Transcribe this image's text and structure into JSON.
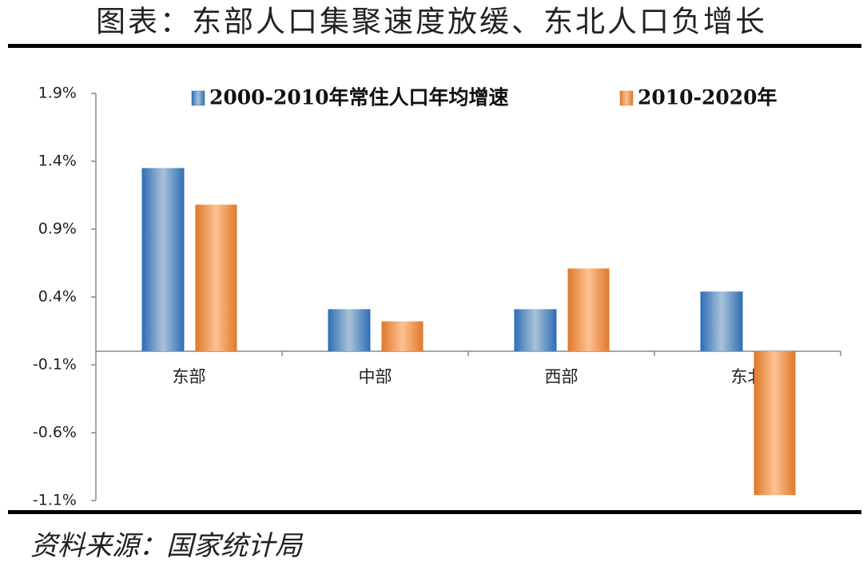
{
  "chart_data": {
    "type": "bar",
    "title": "图表：东部人口集聚速度放缓、东北人口负增长",
    "source": "资料来源：国家统计局",
    "categories": [
      "东部",
      "中部",
      "西部",
      "东北"
    ],
    "series": [
      {
        "name": "2000-2010年常住人口年均增速",
        "color": "#2e6db4",
        "values": [
          1.35,
          0.31,
          0.31,
          0.44
        ]
      },
      {
        "name": "2010-2020年",
        "color": "#e0782a",
        "values": [
          1.08,
          0.22,
          0.61,
          -1.06
        ]
      }
    ],
    "ylim": [
      -1.1,
      1.9
    ],
    "yticks": [
      {
        "value": -1.1,
        "label": "-1.1%"
      },
      {
        "value": -0.6,
        "label": "-0.6%"
      },
      {
        "value": -0.1,
        "label": "-0.1%"
      },
      {
        "value": 0.4,
        "label": "0.4%"
      },
      {
        "value": 0.9,
        "label": "0.9%"
      },
      {
        "value": 1.4,
        "label": "1.4%"
      },
      {
        "value": 1.9,
        "label": "1.9%"
      }
    ],
    "legend": "top"
  }
}
